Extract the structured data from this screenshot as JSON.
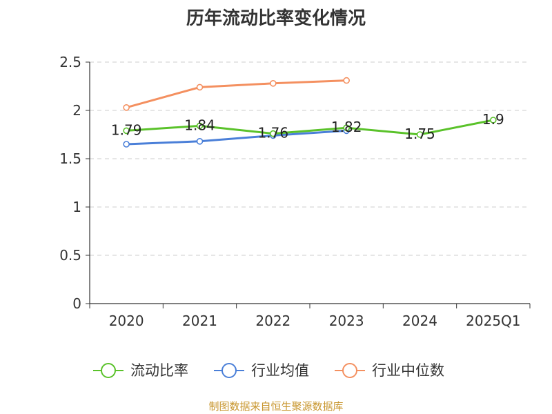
{
  "chart_data": {
    "type": "line",
    "title": "历年流动比率变化情况",
    "categories": [
      "2020",
      "2021",
      "2022",
      "2023",
      "2024",
      "2025Q1"
    ],
    "ylim": [
      0,
      2.5
    ],
    "yticks": [
      "0",
      "0.5",
      "1",
      "1.5",
      "2",
      "2.5"
    ],
    "grid": true,
    "legend_position": "bottom",
    "series": [
      {
        "name": "流动比率",
        "color": "#5ac22a",
        "values": [
          1.79,
          1.84,
          1.76,
          1.82,
          1.75,
          1.9
        ],
        "labels": [
          "1.79",
          "1.84",
          "1.76",
          "1.82",
          "1.75",
          "1.9"
        ]
      },
      {
        "name": "行业均值",
        "color": "#4a7fd8",
        "values": [
          1.65,
          1.68,
          1.74,
          1.79,
          null,
          null
        ]
      },
      {
        "name": "行业中位数",
        "color": "#f49060",
        "values": [
          2.03,
          2.24,
          2.28,
          2.31,
          null,
          null
        ]
      }
    ]
  },
  "source": "制图数据来自恒生聚源数据库"
}
